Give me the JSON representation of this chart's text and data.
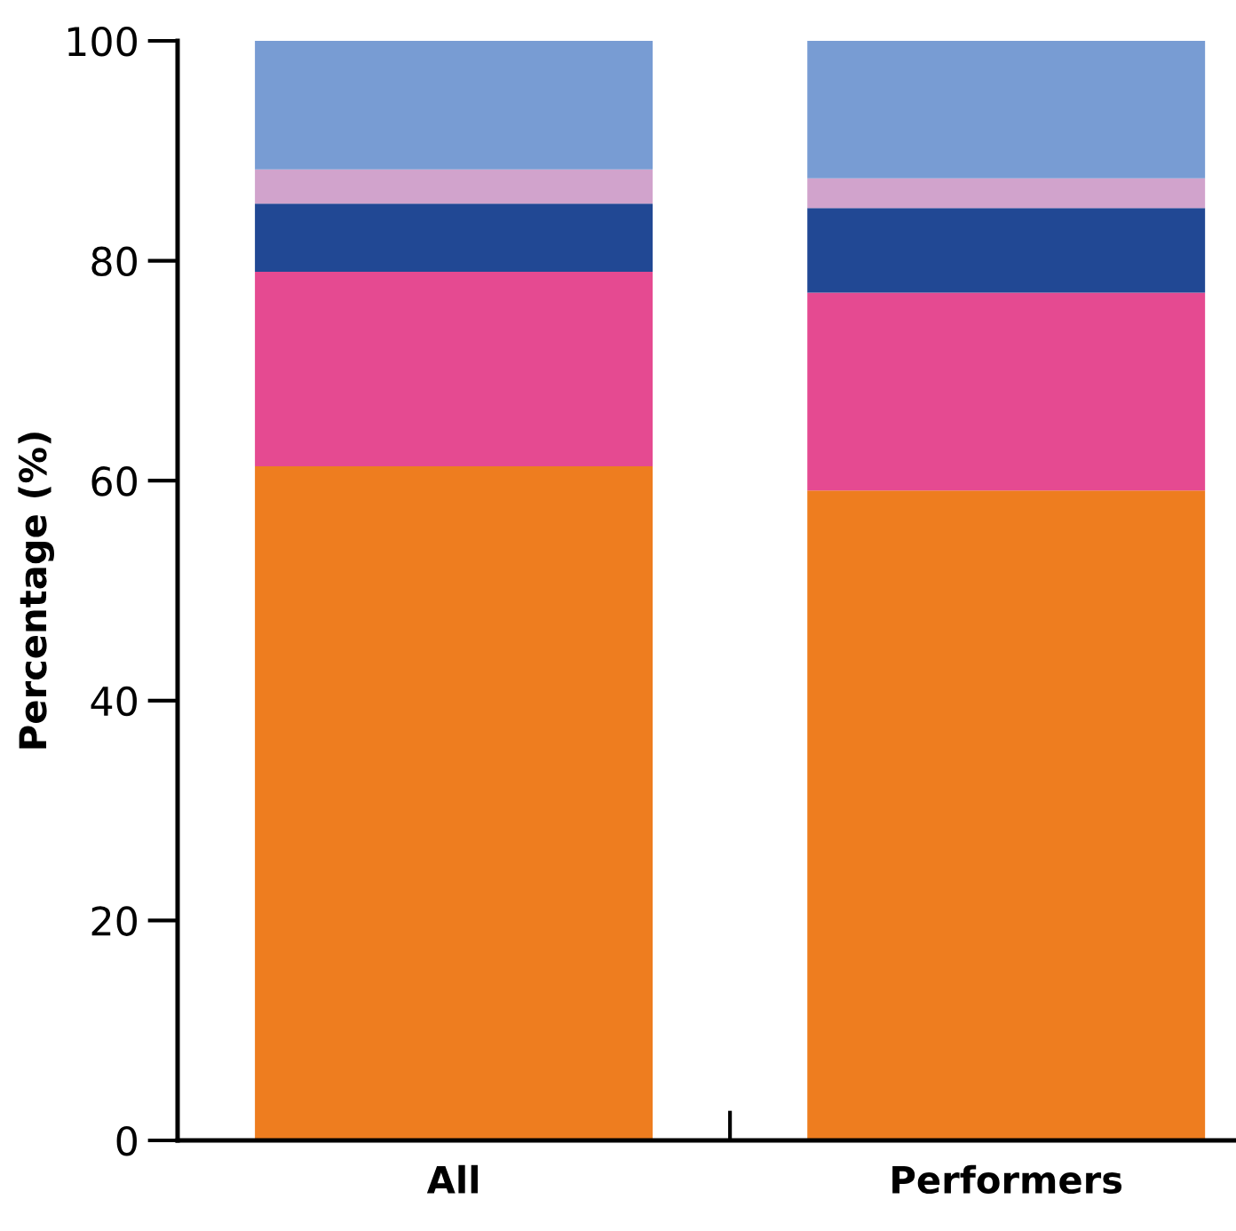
{
  "chart_data": {
    "type": "bar",
    "stacked": true,
    "ylabel": "Percentage (%)",
    "categories": [
      "All",
      "Performers"
    ],
    "series": [
      {
        "color": "#ee7d1f",
        "values": [
          61.3,
          59.1
        ]
      },
      {
        "color": "#e54a91",
        "values": [
          17.7,
          18.0
        ]
      },
      {
        "color": "#214894",
        "values": [
          6.2,
          7.7
        ]
      },
      {
        "color": "#d1a3cc",
        "values": [
          3.1,
          2.7
        ]
      },
      {
        "color": "#789cd3",
        "values": [
          11.7,
          12.5
        ]
      }
    ],
    "ylim": [
      0,
      100
    ],
    "yticks": [
      0,
      20,
      40,
      60,
      80,
      100
    ],
    "grid": false,
    "legend": false
  }
}
